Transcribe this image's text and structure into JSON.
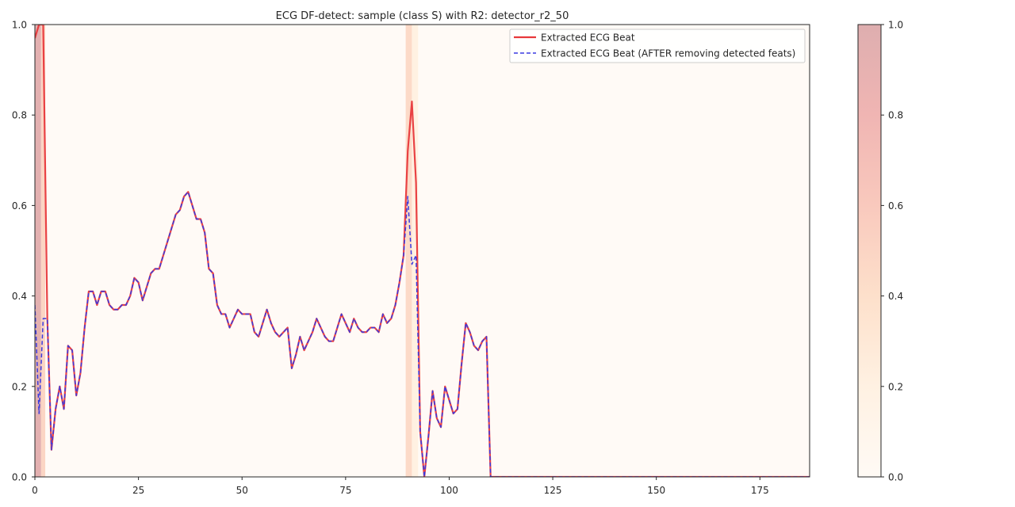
{
  "chart_data": {
    "type": "line",
    "title": "ECG DF-detect: sample (class S) with R2: detector_r2_50",
    "xlabel": "",
    "ylabel": "",
    "xlim": [
      0,
      187
    ],
    "ylim": [
      0,
      1.0
    ],
    "x_ticks": [
      0,
      25,
      50,
      75,
      100,
      125,
      150,
      175
    ],
    "y_ticks": [
      0.0,
      0.2,
      0.4,
      0.6,
      0.8,
      1.0
    ],
    "legend_position": "top-right",
    "grid": false,
    "series": [
      {
        "name": "Extracted ECG Beat",
        "color": "#e8383b",
        "style": "solid",
        "values": [
          0.97,
          1.0,
          1.0,
          0.35,
          0.06,
          0.15,
          0.2,
          0.15,
          0.29,
          0.28,
          0.18,
          0.23,
          0.33,
          0.41,
          0.41,
          0.38,
          0.41,
          0.41,
          0.38,
          0.37,
          0.37,
          0.38,
          0.38,
          0.4,
          0.44,
          0.43,
          0.39,
          0.42,
          0.45,
          0.46,
          0.46,
          0.49,
          0.52,
          0.55,
          0.58,
          0.59,
          0.62,
          0.63,
          0.6,
          0.57,
          0.57,
          0.54,
          0.46,
          0.45,
          0.38,
          0.36,
          0.36,
          0.33,
          0.35,
          0.37,
          0.36,
          0.36,
          0.36,
          0.32,
          0.31,
          0.34,
          0.37,
          0.34,
          0.32,
          0.31,
          0.32,
          0.33,
          0.24,
          0.27,
          0.31,
          0.28,
          0.3,
          0.32,
          0.35,
          0.33,
          0.31,
          0.3,
          0.3,
          0.33,
          0.36,
          0.34,
          0.32,
          0.35,
          0.33,
          0.32,
          0.32,
          0.33,
          0.33,
          0.32,
          0.36,
          0.34,
          0.35,
          0.38,
          0.43,
          0.49,
          0.72,
          0.83,
          0.65,
          0.1,
          0.0,
          0.09,
          0.19,
          0.13,
          0.11,
          0.2,
          0.17,
          0.14,
          0.15,
          0.25,
          0.34,
          0.32,
          0.29,
          0.28,
          0.3,
          0.31,
          0.0,
          0.0,
          0.0,
          0.0,
          0.0,
          0.0,
          0.0,
          0.0,
          0.0,
          0.0,
          0.0,
          0.0,
          0.0,
          0.0,
          0.0,
          0.0,
          0.0,
          0.0,
          0.0,
          0.0,
          0.0,
          0.0,
          0.0,
          0.0,
          0.0,
          0.0,
          0.0,
          0.0,
          0.0,
          0.0,
          0.0,
          0.0,
          0.0,
          0.0,
          0.0,
          0.0,
          0.0,
          0.0,
          0.0,
          0.0,
          0.0,
          0.0,
          0.0,
          0.0,
          0.0,
          0.0,
          0.0,
          0.0,
          0.0,
          0.0,
          0.0,
          0.0,
          0.0,
          0.0,
          0.0,
          0.0,
          0.0,
          0.0,
          0.0,
          0.0,
          0.0,
          0.0,
          0.0,
          0.0,
          0.0,
          0.0,
          0.0,
          0.0,
          0.0,
          0.0,
          0.0,
          0.0,
          0.0,
          0.0,
          0.0,
          0.0,
          0.0,
          0.0,
          0.0,
          0.0,
          0.0,
          0.0,
          0.0,
          0.0,
          0.0,
          0.0,
          0.0,
          0.0,
          0.0
        ]
      },
      {
        "name": "Extracted ECG Beat (AFTER removing detected feats)",
        "color": "#3a3ae0",
        "style": "dashed",
        "values": [
          0.38,
          0.14,
          0.35,
          0.35,
          0.06,
          0.15,
          0.2,
          0.15,
          0.29,
          0.28,
          0.18,
          0.23,
          0.33,
          0.41,
          0.41,
          0.38,
          0.41,
          0.41,
          0.38,
          0.37,
          0.37,
          0.38,
          0.38,
          0.4,
          0.44,
          0.43,
          0.39,
          0.42,
          0.45,
          0.46,
          0.46,
          0.49,
          0.52,
          0.55,
          0.58,
          0.59,
          0.62,
          0.63,
          0.6,
          0.57,
          0.57,
          0.54,
          0.46,
          0.45,
          0.38,
          0.36,
          0.36,
          0.33,
          0.35,
          0.37,
          0.36,
          0.36,
          0.36,
          0.32,
          0.31,
          0.34,
          0.37,
          0.34,
          0.32,
          0.31,
          0.32,
          0.33,
          0.24,
          0.27,
          0.31,
          0.28,
          0.3,
          0.32,
          0.35,
          0.33,
          0.31,
          0.3,
          0.3,
          0.33,
          0.36,
          0.34,
          0.32,
          0.35,
          0.33,
          0.32,
          0.32,
          0.33,
          0.33,
          0.32,
          0.36,
          0.34,
          0.35,
          0.38,
          0.43,
          0.49,
          0.62,
          0.47,
          0.49,
          0.1,
          0.0,
          0.09,
          0.19,
          0.13,
          0.11,
          0.2,
          0.17,
          0.14,
          0.15,
          0.25,
          0.34,
          0.32,
          0.29,
          0.28,
          0.3,
          0.31,
          0.0,
          0.0,
          0.0,
          0.0,
          0.0,
          0.0,
          0.0,
          0.0,
          0.0,
          0.0,
          0.0,
          0.0,
          0.0,
          0.0,
          0.0,
          0.0,
          0.0,
          0.0,
          0.0,
          0.0,
          0.0,
          0.0,
          0.0,
          0.0,
          0.0,
          0.0,
          0.0,
          0.0,
          0.0,
          0.0,
          0.0,
          0.0,
          0.0,
          0.0,
          0.0,
          0.0,
          0.0,
          0.0,
          0.0,
          0.0,
          0.0,
          0.0,
          0.0,
          0.0,
          0.0,
          0.0,
          0.0,
          0.0,
          0.0,
          0.0,
          0.0,
          0.0,
          0.0,
          0.0,
          0.0,
          0.0,
          0.0,
          0.0,
          0.0,
          0.0,
          0.0,
          0.0,
          0.0,
          0.0,
          0.0,
          0.0,
          0.0,
          0.0,
          0.0,
          0.0,
          0.0,
          0.0,
          0.0,
          0.0,
          0.0,
          0.0,
          0.0,
          0.0,
          0.0,
          0.0,
          0.0,
          0.0,
          0.0,
          0.0,
          0.0,
          0.0,
          0.0
        ]
      }
    ],
    "heatmap_background": {
      "description_values": "per-sample relevance levels shaded behind the lines",
      "base_level": 0.02,
      "highlights": [
        {
          "x_start": 0,
          "x_end": 1.5,
          "level": 0.95
        },
        {
          "x_start": 1.5,
          "x_end": 2.5,
          "level": 0.5
        },
        {
          "x_start": 89.5,
          "x_end": 91,
          "level": 0.45
        },
        {
          "x_start": 91,
          "x_end": 92.5,
          "level": 0.2
        }
      ]
    },
    "colorbar": {
      "range": [
        0.0,
        1.0
      ],
      "ticks": [
        0.0,
        0.2,
        0.4,
        0.6,
        0.8,
        1.0
      ],
      "colormap": "OrRd-like",
      "color_low": "#fff8f0",
      "color_mid": "#fccaa8",
      "color_high": "#e3a5a6"
    }
  }
}
